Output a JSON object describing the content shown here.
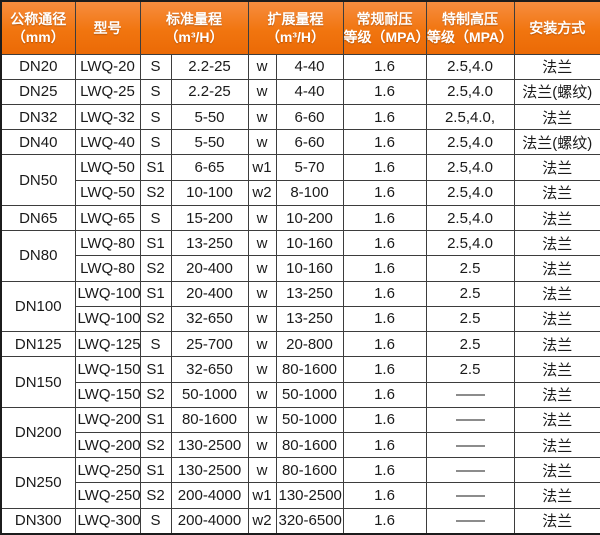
{
  "colors": {
    "header_bg": "#f1750f",
    "header_text": "#ffffff",
    "header_border": "#47220a",
    "grid": "#3d3d3d",
    "outer_border": "#1c1c1c",
    "body_text": "#1a1a1a"
  },
  "table": {
    "headers": [
      {
        "line1": "公称通径",
        "line2": "（mm）"
      },
      {
        "line1": "型号",
        "line2": ""
      },
      {
        "line1": "标准量程",
        "line2": "（m³/H）"
      },
      {
        "line1": "扩展量程",
        "line2": "（m³/H）"
      },
      {
        "line1": "常规耐压",
        "line2": "等级（MPA）"
      },
      {
        "line1": "特制高压",
        "line2": "等级（MPA）"
      },
      {
        "line1": "安装方式",
        "line2": ""
      }
    ],
    "groups": [
      {
        "dn": "DN20",
        "rows": [
          [
            "LWQ-20",
            "S",
            "2.2-25",
            "w",
            "4-40",
            "1.6",
            "2.5,4.0",
            "法兰"
          ]
        ]
      },
      {
        "dn": "DN25",
        "rows": [
          [
            "LWQ-25",
            "S",
            "2.2-25",
            "w",
            "4-40",
            "1.6",
            "2.5,4.0",
            "法兰(螺纹)"
          ]
        ]
      },
      {
        "dn": "DN32",
        "rows": [
          [
            "LWQ-32",
            "S",
            "5-50",
            "w",
            "6-60",
            "1.6",
            "2.5,4.0,",
            "法兰"
          ]
        ]
      },
      {
        "dn": "DN40",
        "rows": [
          [
            "LWQ-40",
            "S",
            "5-50",
            "w",
            "6-60",
            "1.6",
            "2.5,4.0",
            "法兰(螺纹)"
          ]
        ]
      },
      {
        "dn": "DN50",
        "rows": [
          [
            "LWQ-50",
            "S1",
            "6-65",
            "w1",
            "5-70",
            "1.6",
            "2.5,4.0",
            "法兰"
          ],
          [
            "LWQ-50",
            "S2",
            "10-100",
            "w2",
            "8-100",
            "1.6",
            "2.5,4.0",
            "法兰"
          ]
        ]
      },
      {
        "dn": "DN65",
        "rows": [
          [
            "LWQ-65",
            "S",
            "15-200",
            "w",
            "10-200",
            "1.6",
            "2.5,4.0",
            "法兰"
          ]
        ]
      },
      {
        "dn": "DN80",
        "rows": [
          [
            "LWQ-80",
            "S1",
            "13-250",
            "w",
            "10-160",
            "1.6",
            "2.5,4.0",
            "法兰"
          ],
          [
            "LWQ-80",
            "S2",
            "20-400",
            "w",
            "10-160",
            "1.6",
            "2.5",
            "法兰"
          ]
        ]
      },
      {
        "dn": "DN100",
        "rows": [
          [
            "LWQ-100",
            "S1",
            "20-400",
            "w",
            "13-250",
            "1.6",
            "2.5",
            "法兰"
          ],
          [
            "LWQ-100",
            "S2",
            "32-650",
            "w",
            "13-250",
            "1.6",
            "2.5",
            "法兰"
          ]
        ]
      },
      {
        "dn": "DN125",
        "rows": [
          [
            "LWQ-125",
            "S",
            "25-700",
            "w",
            "20-800",
            "1.6",
            "2.5",
            "法兰"
          ]
        ]
      },
      {
        "dn": "DN150",
        "rows": [
          [
            "LWQ-150",
            "S1",
            "32-650",
            "w",
            "80-1600",
            "1.6",
            "2.5",
            "法兰"
          ],
          [
            "LWQ-150",
            "S2",
            "50-1000",
            "w",
            "50-1000",
            "1.6",
            "——",
            "法兰"
          ]
        ]
      },
      {
        "dn": "DN200",
        "rows": [
          [
            "LWQ-200",
            "S1",
            "80-1600",
            "w",
            "50-1000",
            "1.6",
            "——",
            "法兰"
          ],
          [
            "LWQ-200",
            "S2",
            "130-2500",
            "w",
            "80-1600",
            "1.6",
            "——",
            "法兰"
          ]
        ]
      },
      {
        "dn": "DN250",
        "rows": [
          [
            "LWQ-250",
            "S1",
            "130-2500",
            "w",
            "80-1600",
            "1.6",
            "——",
            "法兰"
          ],
          [
            "LWQ-250",
            "S2",
            "200-4000",
            "w1",
            "130-2500",
            "1.6",
            "——",
            "法兰"
          ]
        ]
      },
      {
        "dn": "DN300",
        "rows": [
          [
            "LWQ-300",
            "S",
            "200-4000",
            "w2",
            "320-6500",
            "1.6",
            "——",
            "法兰"
          ]
        ]
      }
    ]
  }
}
